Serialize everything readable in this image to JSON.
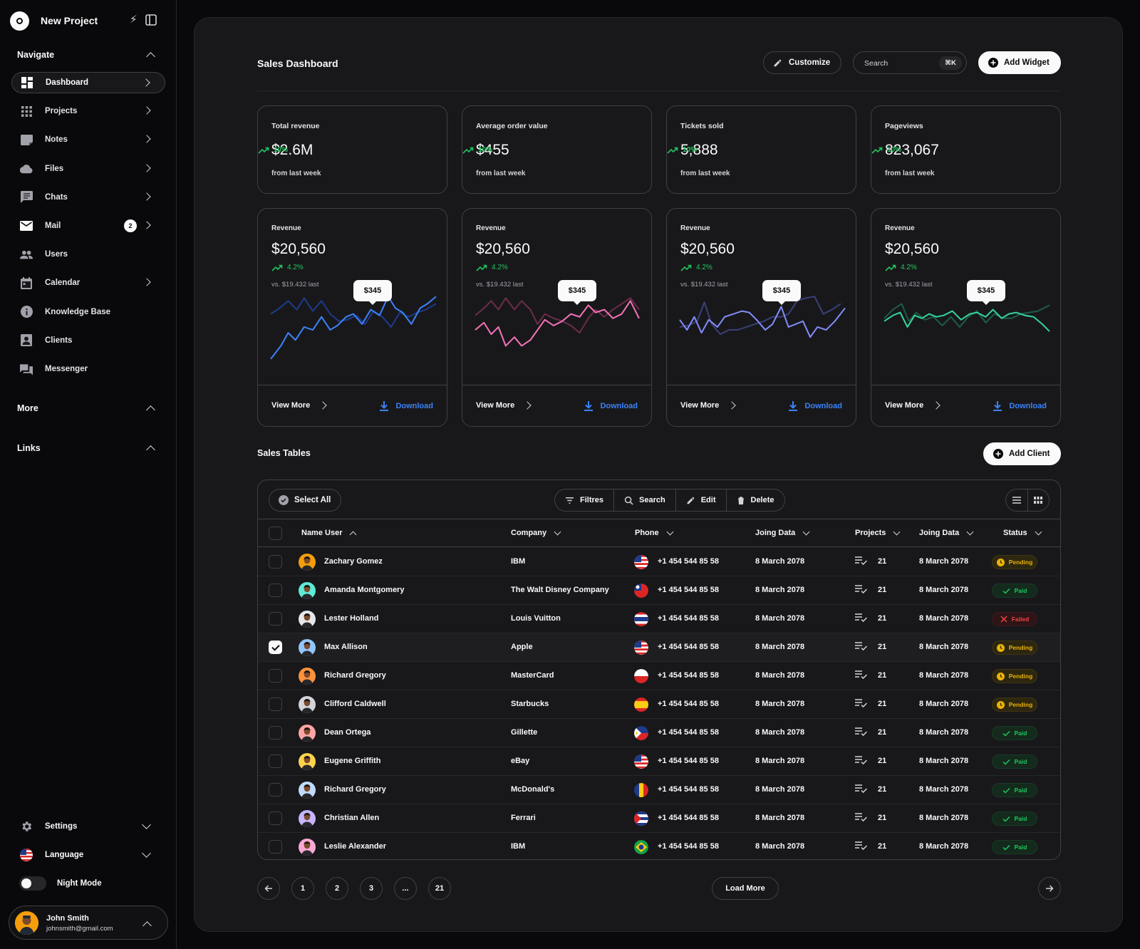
{
  "app": {
    "name": "New Project"
  },
  "sidebar": {
    "navigate_label": "Navigate",
    "items": [
      {
        "label": "Dashboard",
        "icon": "dashboard-icon",
        "chevron": true,
        "active": true
      },
      {
        "label": "Projects",
        "icon": "grid-icon",
        "chevron": true
      },
      {
        "label": "Notes",
        "icon": "note-icon",
        "chevron": true
      },
      {
        "label": "Files",
        "icon": "cloud-icon",
        "chevron": true
      },
      {
        "label": "Chats",
        "icon": "chat-icon",
        "chevron": true
      },
      {
        "label": "Mail",
        "icon": "mail-icon",
        "chevron": true,
        "badge": "2"
      },
      {
        "label": "Users",
        "icon": "users-icon",
        "chevron": false
      },
      {
        "label": "Calendar",
        "icon": "calendar-icon",
        "chevron": true
      },
      {
        "label": "Knowledge Base",
        "icon": "info-icon",
        "chevron": false
      },
      {
        "label": "Clients",
        "icon": "contact-icon",
        "chevron": false
      },
      {
        "label": "Messenger",
        "icon": "forum-icon",
        "chevron": false
      }
    ],
    "more_label": "More",
    "links_label": "Links",
    "settings_label": "Settings",
    "language_label": "Language",
    "night_mode_label": "Night Mode",
    "user": {
      "name": "John Smith",
      "email": "johnsmith@gmail.com"
    }
  },
  "header": {
    "title": "Sales Dashboard",
    "customize_label": "Customize",
    "search_placeholder": "Search",
    "search_shortcut": "⌘K",
    "add_widget_label": "Add Widget"
  },
  "stats": [
    {
      "label": "Total revenue",
      "value": "$2.6M",
      "trend": "10%",
      "foot": "from last week"
    },
    {
      "label": "Average order value",
      "value": "$455",
      "trend": "10%",
      "foot": "from last week"
    },
    {
      "label": "Tickets sold",
      "value": "5,888",
      "trend": "10%",
      "foot": "from last week"
    },
    {
      "label": "Pageviews",
      "value": "823,067",
      "trend": "10%",
      "foot": "from last week"
    }
  ],
  "revenue_cards": [
    {
      "label": "Revenue",
      "value": "$20,560",
      "trend": "4.2%",
      "vs": "vs. $19.432 last",
      "tooltip": "$345",
      "color": "#3b82f6",
      "color2": "#1e3a8a",
      "view_more": "View More",
      "download": "Download"
    },
    {
      "label": "Revenue",
      "value": "$20,560",
      "trend": "4.2%",
      "vs": "vs. $19.432 last",
      "tooltip": "$345",
      "color": "#f472b6",
      "color2": "#6b2c4a",
      "view_more": "View More",
      "download": "Download"
    },
    {
      "label": "Revenue",
      "value": "$20,560",
      "trend": "4.2%",
      "vs": "vs. $19.432 last",
      "tooltip": "$345",
      "color": "#818cf8",
      "color2": "#3a3f77",
      "view_more": "View More",
      "download": "Download"
    },
    {
      "label": "Revenue",
      "value": "$20,560",
      "trend": "4.2%",
      "vs": "vs. $19.432 last",
      "tooltip": "$345",
      "color": "#34d399",
      "color2": "#1f5a48",
      "view_more": "View More",
      "download": "Download"
    }
  ],
  "tables": {
    "title": "Sales Tables",
    "add_client_label": "Add Client",
    "select_all_label": "Select All",
    "toolbar": [
      "Filtres",
      "Search",
      "Edit",
      "Delete"
    ],
    "columns": [
      "Name User",
      "Company",
      "Phone",
      "Joing Data",
      "Projects",
      "Joing Data",
      "Status"
    ],
    "rows": [
      {
        "name": "Zachary Gomez",
        "company": "IBM",
        "phone": "+1 454 544 85 58",
        "date": "8 March 2078",
        "projects": "21",
        "date2": "8 March 2078",
        "status": "Pending",
        "flag": "us",
        "avatar": "#f59e0b",
        "checked": false
      },
      {
        "name": "Amanda Montgomery",
        "company": "The Walt Disney Company",
        "phone": "+1 454 544 85 58",
        "date": "8 March 2078",
        "projects": "21",
        "date2": "8 March 2078",
        "status": "Paid",
        "flag": "tw",
        "avatar": "#5eead4",
        "checked": false
      },
      {
        "name": "Lester Holland",
        "company": "Louis Vuitton",
        "phone": "+1 454 544 85 58",
        "date": "8 March 2078",
        "projects": "21",
        "date2": "8 March 2078",
        "status": "Failed",
        "flag": "th",
        "avatar": "#e5e7eb",
        "checked": false
      },
      {
        "name": "Max Allison",
        "company": "Apple",
        "phone": "+1 454 544 85 58",
        "date": "8 March 2078",
        "projects": "21",
        "date2": "8 March 2078",
        "status": "Pending",
        "flag": "us",
        "avatar": "#93c5fd",
        "checked": true
      },
      {
        "name": "Richard Gregory",
        "company": "MasterCard",
        "phone": "+1 454 544 85 58",
        "date": "8 March 2078",
        "projects": "21",
        "date2": "8 March 2078",
        "status": "Pending",
        "flag": "pl",
        "avatar": "#fb923c",
        "checked": false
      },
      {
        "name": "Clifford Caldwell",
        "company": "Starbucks",
        "phone": "+1 454 544 85 58",
        "date": "8 March 2078",
        "projects": "21",
        "date2": "8 March 2078",
        "status": "Pending",
        "flag": "es",
        "avatar": "#d1d5db",
        "checked": false
      },
      {
        "name": "Dean Ortega",
        "company": "Gillette",
        "phone": "+1 454 544 85 58",
        "date": "8 March 2078",
        "projects": "21",
        "date2": "8 March 2078",
        "status": "Paid",
        "flag": "ph",
        "avatar": "#fca5a5",
        "checked": false
      },
      {
        "name": "Eugene Griffith",
        "company": "eBay",
        "phone": "+1 454 544 85 58",
        "date": "8 March 2078",
        "projects": "21",
        "date2": "8 March 2078",
        "status": "Paid",
        "flag": "us",
        "avatar": "#fcd34d",
        "checked": false
      },
      {
        "name": "Richard Gregory",
        "company": "McDonald's",
        "phone": "+1 454 544 85 58",
        "date": "8 March 2078",
        "projects": "21",
        "date2": "8 March 2078",
        "status": "Paid",
        "flag": "ro",
        "avatar": "#bfdbfe",
        "checked": false
      },
      {
        "name": "Christian Allen",
        "company": "Ferrari",
        "phone": "+1 454 544 85 58",
        "date": "8 March 2078",
        "projects": "21",
        "date2": "8 March 2078",
        "status": "Paid",
        "flag": "cu",
        "avatar": "#c4b5fd",
        "checked": false
      },
      {
        "name": "Leslie Alexander",
        "company": "IBM",
        "phone": "+1 454 544 85 58",
        "date": "8 March 2078",
        "projects": "21",
        "date2": "8 March 2078",
        "status": "Paid",
        "flag": "br",
        "avatar": "#f9a8d4",
        "checked": false
      }
    ]
  },
  "pagination": {
    "pages": [
      "1",
      "2",
      "3",
      "...",
      "21"
    ],
    "load_more_label": "Load More"
  }
}
